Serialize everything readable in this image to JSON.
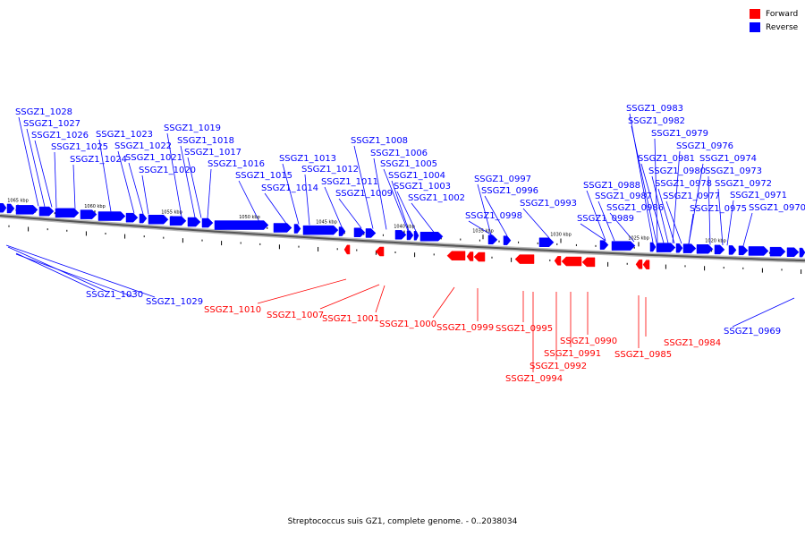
{
  "legend": {
    "forward_label": "Forward",
    "reverse_label": "Reverse",
    "forward_color": "#ff0000",
    "reverse_color": "#0000ff"
  },
  "caption": "Streptococcus suis GZ1, complete genome. - 0..2038034",
  "ruler_labels": [
    "1065 kbp",
    "1060 kbp",
    "1055 kbp",
    "1050 kbp",
    "1045 kbp",
    "1040 kbp",
    "1035 kbp",
    "1030 kbp",
    "1025 kbp",
    "1020 kbp"
  ],
  "reverse_genes": [
    "SSGZ1_1028",
    "SSGZ1_1027",
    "SSGZ1_1026",
    "SSGZ1_1025",
    "SSGZ1_1024",
    "SSGZ1_1023",
    "SSGZ1_1022",
    "SSGZ1_1021",
    "SSGZ1_1020",
    "SSGZ1_1019",
    "SSGZ1_1018",
    "SSGZ1_1017",
    "SSGZ1_1016",
    "SSGZ1_1015",
    "SSGZ1_1014",
    "SSGZ1_1013",
    "SSGZ1_1012",
    "SSGZ1_1011",
    "SSGZ1_1009",
    "SSGZ1_1008",
    "SSGZ1_1006",
    "SSGZ1_1005",
    "SSGZ1_1004",
    "SSGZ1_1003",
    "SSGZ1_1002",
    "SSGZ1_0997",
    "SSGZ1_0996",
    "SSGZ1_0998",
    "SSGZ1_0993",
    "SSGZ1_0988",
    "SSGZ1_0987",
    "SSGZ1_0986",
    "SSGZ1_0989",
    "SSGZ1_0983",
    "SSGZ1_0982",
    "SSGZ1_0979",
    "SSGZ1_0976",
    "SSGZ1_0981",
    "SSGZ1_0974",
    "SSGZ1_0980",
    "SSGZ1_0973",
    "SSGZ1_0978",
    "SSGZ1_0972",
    "SSGZ1_0977",
    "SSGZ1_0971",
    "SSGZ1_0975",
    "SSGZ1_0970",
    "SSGZ1_1030",
    "SSGZ1_1029",
    "SSGZ1_0969"
  ],
  "forward_genes": [
    "SSGZ1_1010",
    "SSGZ1_1007",
    "SSGZ1_1001",
    "SSGZ1_1000",
    "SSGZ1_0999",
    "SSGZ1_0995",
    "SSGZ1_0990",
    "SSGZ1_0991",
    "SSGZ1_0992",
    "SSGZ1_0994",
    "SSGZ1_0984",
    "SSGZ1_0985"
  ]
}
